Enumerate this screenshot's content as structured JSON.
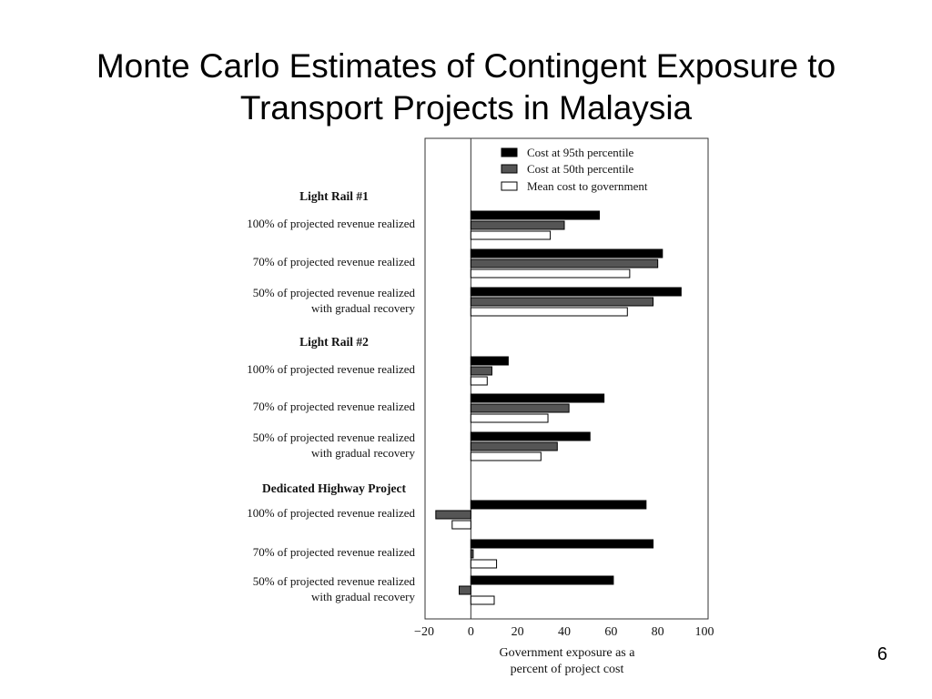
{
  "slide": {
    "title_line1": "Monte Carlo Estimates of Contingent Exposure to",
    "title_line2": "Transport Projects in Malaysia",
    "page_number": "6"
  },
  "chart_data": {
    "type": "bar",
    "orientation": "horizontal",
    "title": "",
    "xlabel_line1": "Government exposure as a",
    "xlabel_line2": "percent of project cost",
    "xlim": [
      -20,
      100
    ],
    "xticks": [
      -20,
      0,
      20,
      40,
      60,
      80,
      100
    ],
    "grid": false,
    "legend_placement": "top-right",
    "series": [
      {
        "name": "Cost at 95th percentile",
        "fill": "#000000"
      },
      {
        "name": "Cost at 50th percentile",
        "fill": "#555555"
      },
      {
        "name": "Mean cost to government",
        "fill": "#ffffff"
      }
    ],
    "groups": [
      {
        "name": "Light Rail #1",
        "categories": [
          {
            "label": [
              "100% of projected revenue realized"
            ],
            "values": [
              55,
              40,
              34
            ]
          },
          {
            "label": [
              "70% of projected revenue realized"
            ],
            "values": [
              82,
              80,
              68
            ]
          },
          {
            "label": [
              "50% of projected revenue realized",
              "with gradual recovery"
            ],
            "values": [
              90,
              78,
              67
            ]
          }
        ]
      },
      {
        "name": "Light Rail #2",
        "categories": [
          {
            "label": [
              "100% of projected revenue realized"
            ],
            "values": [
              16,
              9,
              7
            ]
          },
          {
            "label": [
              "70% of projected revenue realized"
            ],
            "values": [
              57,
              42,
              33
            ]
          },
          {
            "label": [
              "50% of projected revenue realized",
              "with gradual recovery"
            ],
            "values": [
              51,
              37,
              30
            ]
          }
        ]
      },
      {
        "name": "Dedicated Highway Project",
        "categories": [
          {
            "label": [
              "100% of projected revenue realized"
            ],
            "values": [
              75,
              -15,
              -8
            ]
          },
          {
            "label": [
              "70% of projected revenue realized"
            ],
            "values": [
              78,
              1,
              11
            ]
          },
          {
            "label": [
              "50% of projected revenue realized",
              "with gradual recovery"
            ],
            "values": [
              61,
              -5,
              10
            ]
          }
        ]
      }
    ]
  }
}
